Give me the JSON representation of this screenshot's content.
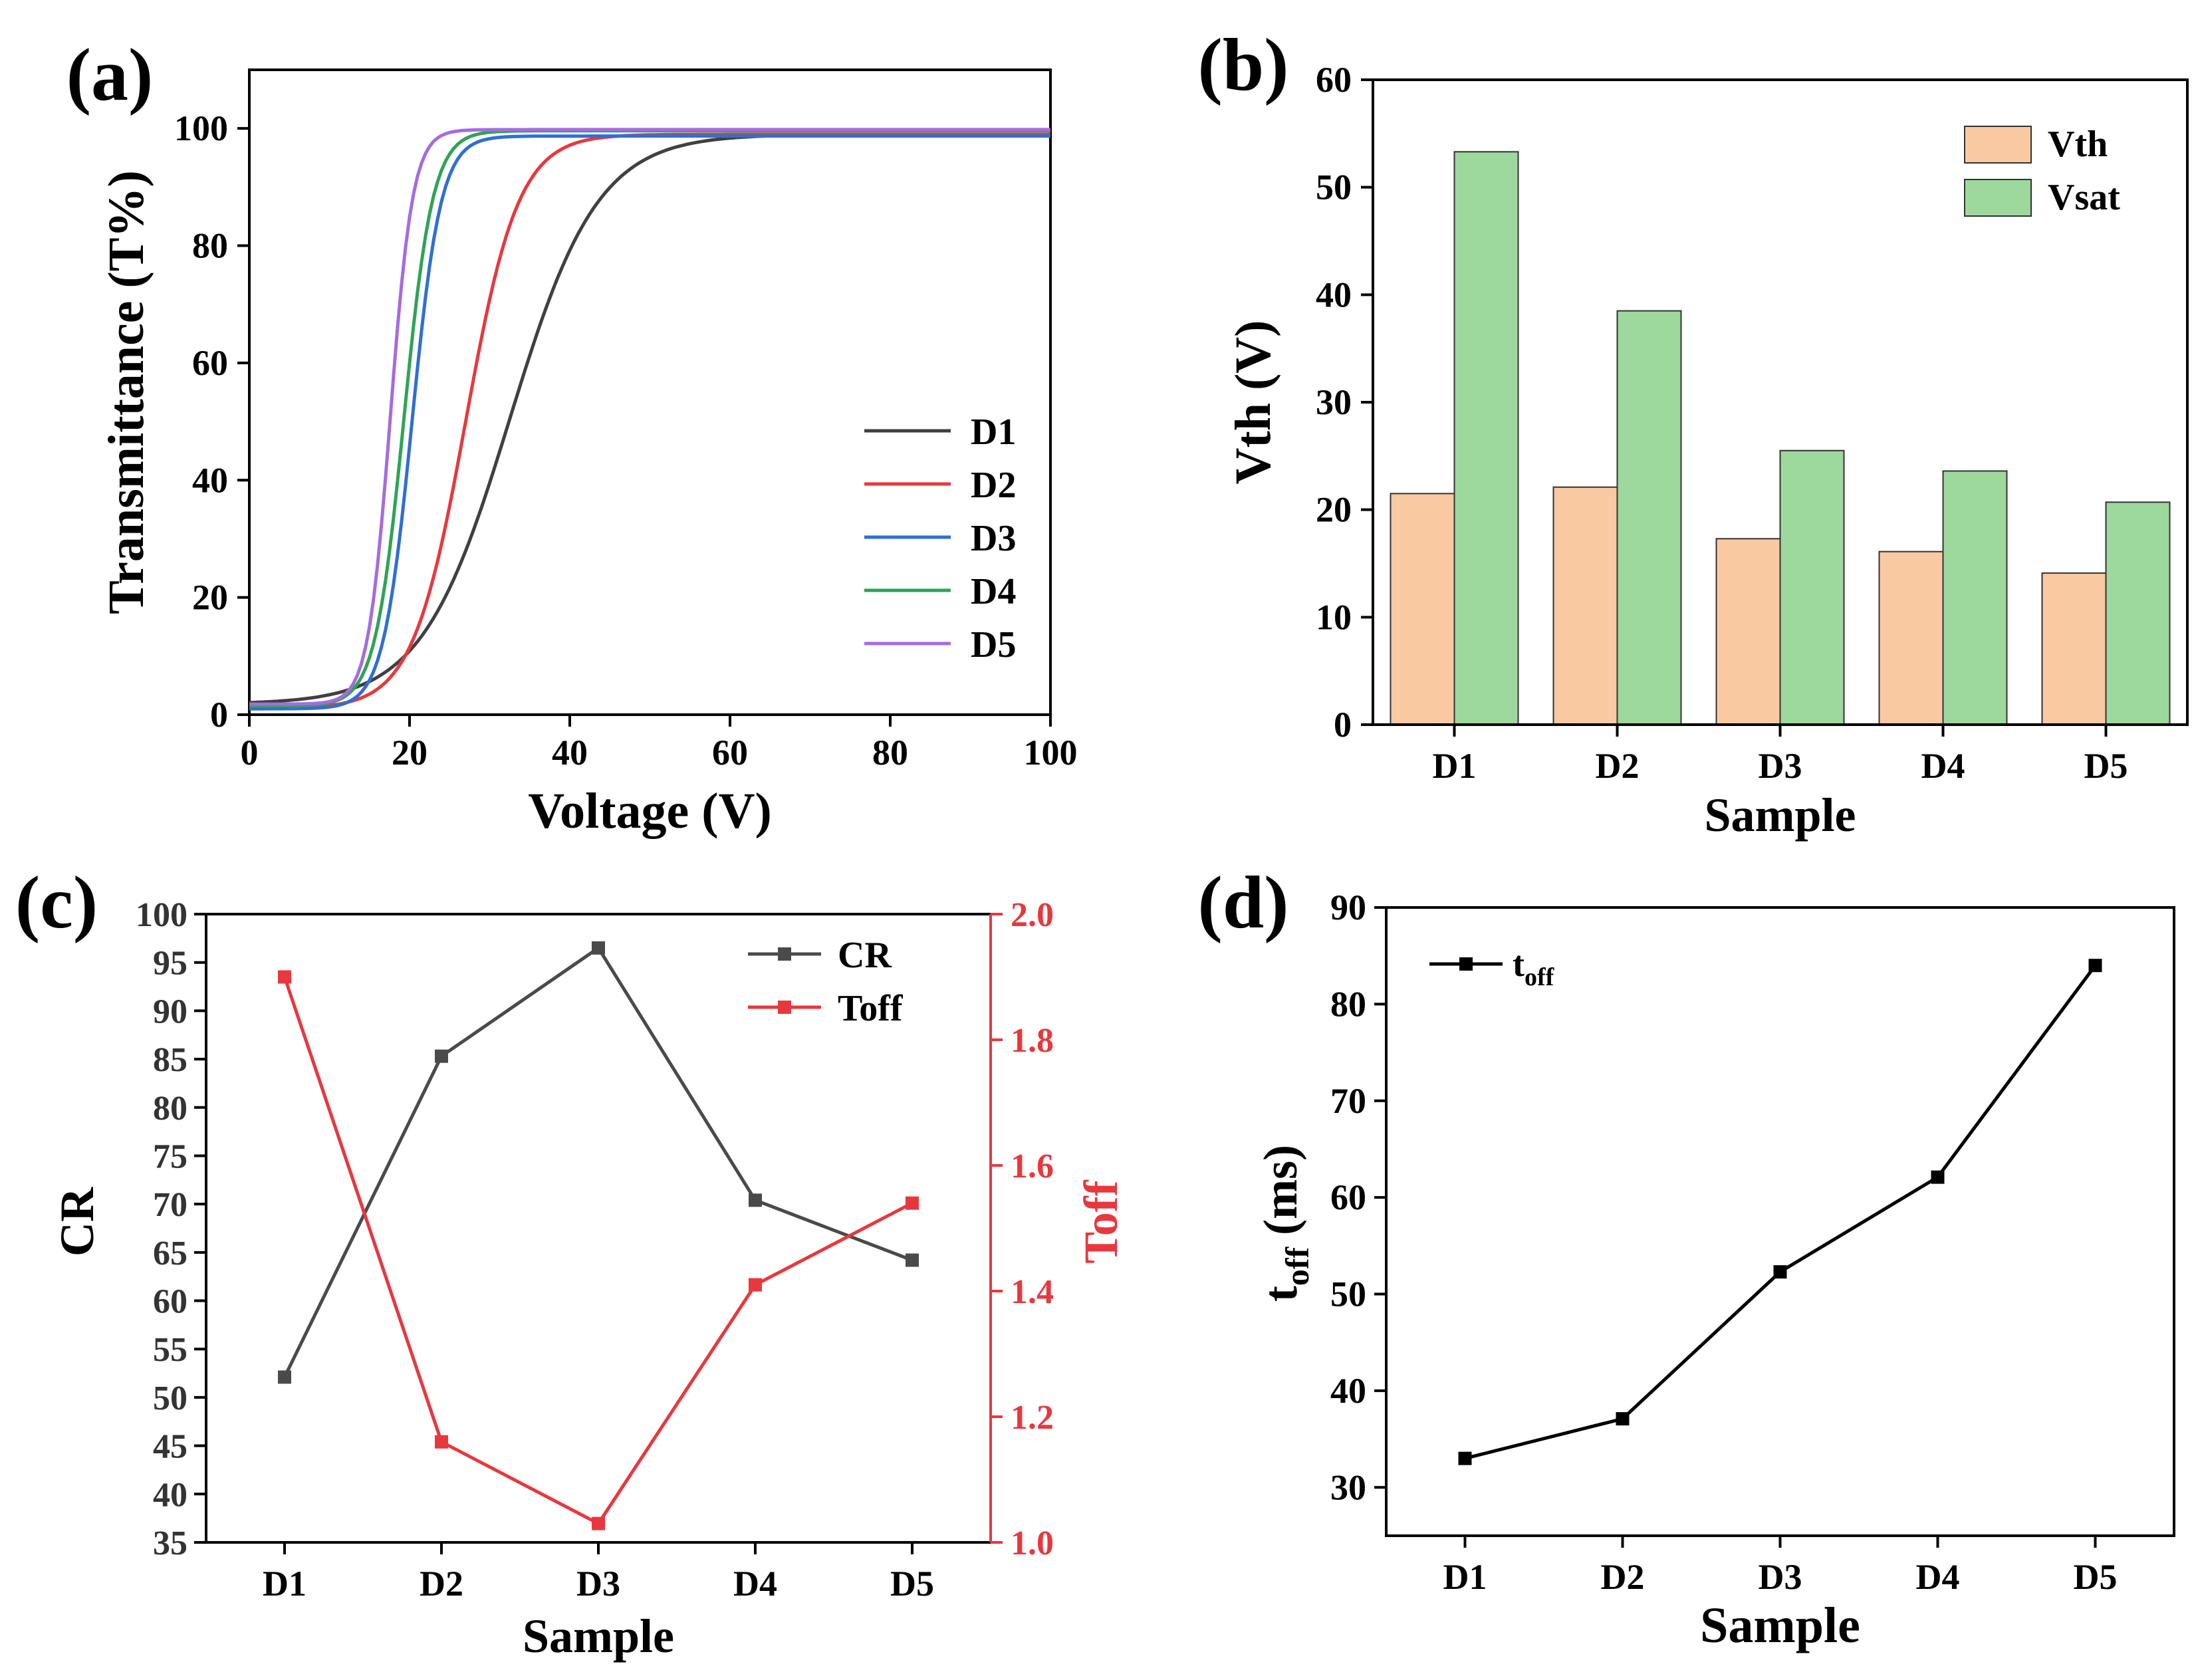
{
  "chart_data": [
    {
      "panel_label": "(a)",
      "type": "line",
      "xlabel": "Voltage (V)",
      "ylabel": "Transmittance (T%)",
      "xlim": [
        0,
        100
      ],
      "ylim": [
        0,
        110
      ],
      "xticks": [
        "0",
        "20",
        "40",
        "60",
        "80",
        "100"
      ],
      "yticks": [
        "0",
        "20",
        "40",
        "60",
        "80",
        "100"
      ],
      "legend_position": "center-right",
      "series": [
        {
          "name": "D1",
          "color": "#404040",
          "T0": 1.8,
          "T100": 99.0,
          "V50": 32.5,
          "width": 5.5
        },
        {
          "name": "D2",
          "color": "#e8383d",
          "T0": 1.0,
          "T100": 99.0,
          "V50": 27.0,
          "width": 3.3
        },
        {
          "name": "D3",
          "color": "#2f6fd6",
          "T0": 1.0,
          "T100": 98.7,
          "V50": 20.3,
          "width": 1.8
        },
        {
          "name": "D4",
          "color": "#2ea456",
          "T0": 1.5,
          "T100": 99.6,
          "V50": 19.3,
          "width": 1.8
        },
        {
          "name": "D5",
          "color": "#a66bdf",
          "T0": 1.8,
          "T100": 99.8,
          "V50": 17.6,
          "width": 1.4
        }
      ]
    },
    {
      "panel_label": "(b)",
      "type": "bar",
      "xlabel": "Sample",
      "ylabel": "Vth (V)",
      "ylim": [
        0,
        60
      ],
      "yticks": [
        "0",
        "10",
        "20",
        "30",
        "40",
        "50",
        "60"
      ],
      "categories": [
        "D1",
        "D2",
        "D3",
        "D4",
        "D5"
      ],
      "legend_position": "top-right",
      "series": [
        {
          "name": "Vth",
          "color": "#f9c9a1",
          "values": [
            21.5,
            22.1,
            17.3,
            16.1,
            14.1
          ]
        },
        {
          "name": "Vsat",
          "color": "#9dd89d",
          "values": [
            53.3,
            38.5,
            25.5,
            23.6,
            20.7
          ]
        }
      ]
    },
    {
      "panel_label": "(c)",
      "type": "line",
      "xlabel": "Sample",
      "ylabel": "CR",
      "ylabel_right": "Toff",
      "ylim": [
        35,
        100
      ],
      "ylim_right": [
        1.0,
        2.0
      ],
      "yticks": [
        "35",
        "40",
        "45",
        "50",
        "55",
        "60",
        "65",
        "70",
        "75",
        "80",
        "85",
        "90",
        "95",
        "100"
      ],
      "yticks_right": [
        "1.0",
        "1.2",
        "1.4",
        "1.6",
        "1.8",
        "2.0"
      ],
      "categories": [
        "D1",
        "D2",
        "D3",
        "D4",
        "D5"
      ],
      "legend_position": "top-right",
      "series": [
        {
          "name": "CR",
          "axis": "left",
          "color": "#4a4a4a",
          "values": [
            52.1,
            85.3,
            96.5,
            70.4,
            64.2
          ]
        },
        {
          "name": "Toff",
          "axis": "right",
          "color": "#e8383d",
          "values": [
            1.9,
            1.16,
            1.03,
            1.41,
            1.54
          ]
        }
      ]
    },
    {
      "panel_label": "(d)",
      "type": "line",
      "xlabel": "Sample",
      "ylabel": "t",
      "ylabel_sub": "off",
      "ylabel_unit": " (ms)",
      "ylim": [
        25,
        90
      ],
      "yticks": [
        "30",
        "40",
        "50",
        "60",
        "70",
        "80",
        "90"
      ],
      "categories": [
        "D1",
        "D2",
        "D3",
        "D4",
        "D5"
      ],
      "legend_position": "top-left",
      "series": [
        {
          "name": "t",
          "name_sub": "off",
          "color": "#000000",
          "values": [
            33.0,
            37.1,
            52.3,
            62.1,
            84.0
          ]
        }
      ]
    }
  ]
}
